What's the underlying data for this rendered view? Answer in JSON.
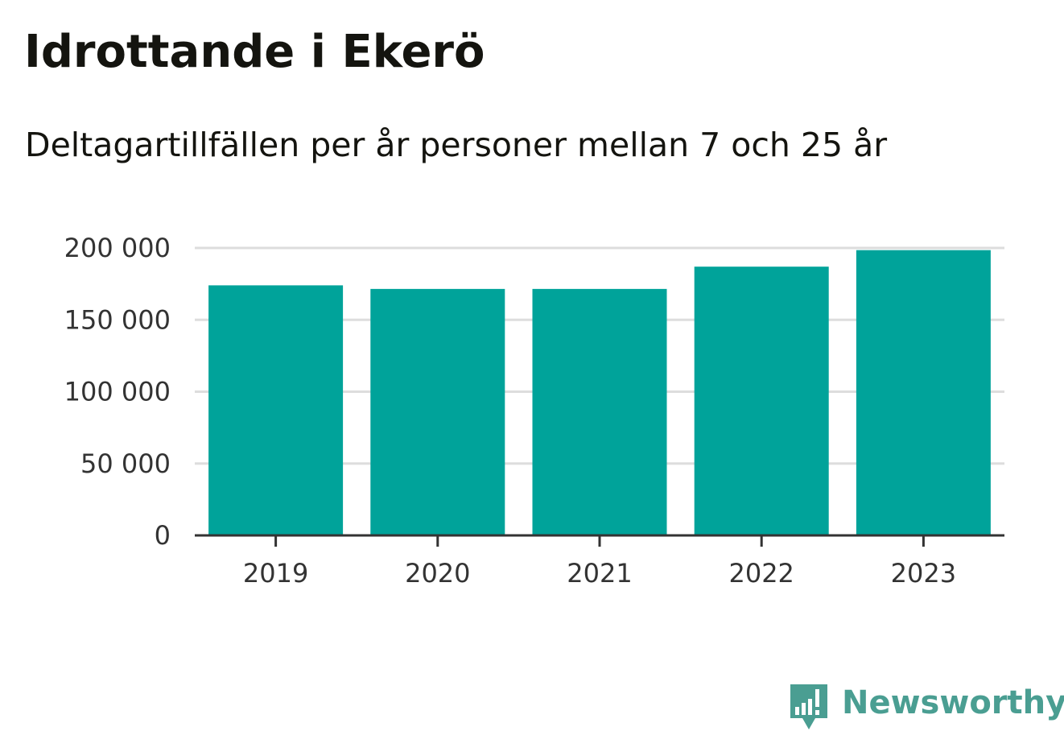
{
  "header": {
    "title": "Idrottande i Ekerö",
    "subtitle": "Deltagartillfällen per år personer mellan 7 och 25 år"
  },
  "brand": {
    "name": "Newsworthy",
    "color": "#4a9e92"
  },
  "chart_data": {
    "type": "bar",
    "title": "Idrottande i Ekerö",
    "subtitle": "Deltagartillfällen per år personer mellan 7 och 25 år",
    "xlabel": "",
    "ylabel": "",
    "categories": [
      "2019",
      "2020",
      "2021",
      "2022",
      "2023"
    ],
    "values": [
      174000,
      171500,
      171500,
      187000,
      198500
    ],
    "ylim": [
      0,
      200000
    ],
    "yticks": [
      0,
      50000,
      100000,
      150000,
      200000
    ],
    "ytick_labels": [
      "0",
      "50 000",
      "100 000",
      "150 000",
      "200 000"
    ],
    "grid": true,
    "legend": "none",
    "bar_color": "#00a39a",
    "grid_color": "#dddddd",
    "axis_color": "#333333"
  }
}
